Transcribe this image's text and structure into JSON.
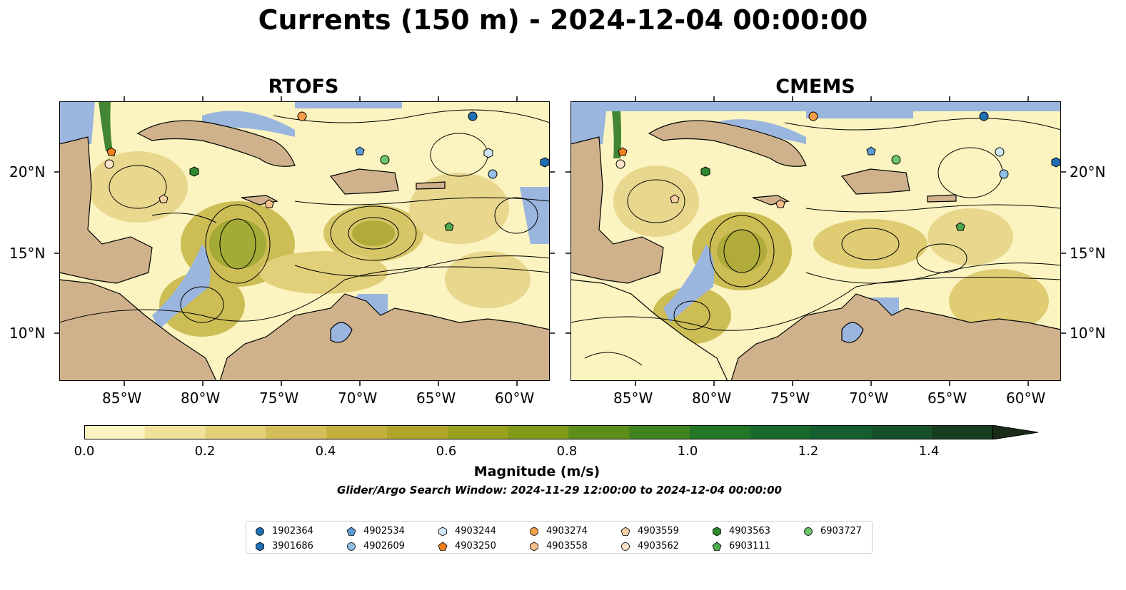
{
  "title": "Currents (150 m) - 2024-12-04 00:00:00",
  "panels": [
    {
      "title": "RTOFS"
    },
    {
      "title": "CMEMS"
    }
  ],
  "axes": {
    "lon_ticks": [
      "85°W",
      "80°W",
      "75°W",
      "70°W",
      "65°W",
      "60°W"
    ],
    "lat_ticks": [
      "20°N",
      "15°N",
      "10°N"
    ]
  },
  "colorbar": {
    "label": "Magnitude (m/s)",
    "ticks": [
      "0.0",
      "0.2",
      "0.4",
      "0.6",
      "0.8",
      "1.0",
      "1.2",
      "1.4"
    ],
    "range": [
      0.0,
      1.5
    ],
    "extend": "max",
    "colors": [
      "#fbf4c0",
      "#f0e29a",
      "#e2cf76",
      "#d4be5a",
      "#c4b03e",
      "#b0a52a",
      "#98a01e",
      "#7e9a18",
      "#5e8e1a",
      "#3f821f",
      "#237627",
      "#176a2c",
      "#145e30",
      "#16502a",
      "#183e22",
      "#1a2b1a"
    ]
  },
  "search_window": "Glider/Argo Search Window: 2024-11-29 12:00:00 to 2024-12-04 00:00:00",
  "map_colors": {
    "ocean_shallow": "#9ab6df",
    "land": "#cfb28c",
    "coast": "#000000",
    "rivers": "#9ab6df"
  },
  "legend": [
    {
      "id": "1902364",
      "marker": "circle",
      "color": "#1f6fb4"
    },
    {
      "id": "3901686",
      "marker": "hexagon",
      "color": "#1f6fb4"
    },
    {
      "id": "4902534",
      "marker": "pentagon",
      "color": "#5b9bd5"
    },
    {
      "id": "4902609",
      "marker": "circle",
      "color": "#8fbfe6"
    },
    {
      "id": "4903244",
      "marker": "hexagon",
      "color": "#cfe6f7"
    },
    {
      "id": "4903250",
      "marker": "pentagon",
      "color": "#f07f1c"
    },
    {
      "id": "4903274",
      "marker": "circle",
      "color": "#f4a04a"
    },
    {
      "id": "4903558",
      "marker": "hexagon",
      "color": "#f7c08a"
    },
    {
      "id": "4903559",
      "marker": "pentagon",
      "color": "#f9cfa4"
    },
    {
      "id": "4903562",
      "marker": "circle",
      "color": "#fde3c8"
    },
    {
      "id": "4903563",
      "marker": "hexagon",
      "color": "#2f8a2f"
    },
    {
      "id": "6903111",
      "marker": "pentagon",
      "color": "#4ea84e"
    },
    {
      "id": "6903727",
      "marker": "circle",
      "color": "#6cc46c"
    }
  ]
}
